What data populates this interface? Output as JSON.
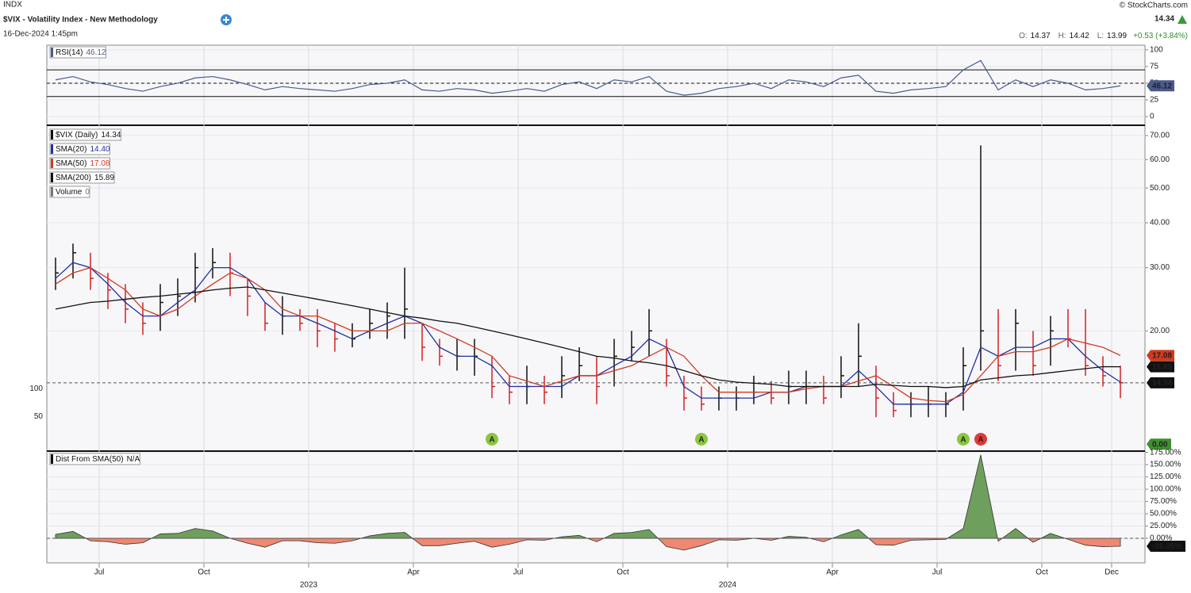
{
  "header": {
    "exchange": "INDX",
    "title": "$VIX - Volatility Index - New Methodology",
    "timestamp": "16-Dec-2024 1:45pm",
    "credit": "© StockCharts.com",
    "last": 14.34,
    "ohlc": [
      {
        "label": "O:",
        "value": 14.37
      },
      {
        "label": "H:",
        "value": 14.42
      },
      {
        "label": "L:",
        "value": 13.99
      }
    ],
    "change": "+0.53 (+3.84%)"
  },
  "chart_data": [
    {
      "type": "line",
      "name": "RSI(14)",
      "last": 46.12,
      "color": "#4a5a8c",
      "ylim": [
        -13,
        107
      ],
      "yticks": [
        0,
        25,
        50,
        75,
        100
      ],
      "bands": [
        30,
        70
      ],
      "midline": 50,
      "values": [
        55,
        60,
        52,
        48,
        42,
        38,
        45,
        50,
        58,
        60,
        55,
        48,
        40,
        45,
        42,
        40,
        38,
        42,
        48,
        50,
        55,
        40,
        38,
        42,
        40,
        35,
        38,
        42,
        38,
        48,
        52,
        42,
        55,
        52,
        60,
        38,
        32,
        35,
        42,
        45,
        50,
        42,
        55,
        52,
        45,
        58,
        62,
        38,
        35,
        40,
        42,
        45,
        70,
        84,
        40,
        55,
        45,
        55,
        50,
        40,
        42,
        46.12
      ]
    },
    {
      "type": "ohlc",
      "name": "$VIX (Daily)",
      "last": 14.34,
      "up_color": "#111111",
      "down_color": "#d42020",
      "log_scale": true,
      "grid": true,
      "categories": [
        null,
        null,
        null,
        "Jul",
        null,
        null,
        null,
        null,
        null,
        "Oct",
        null,
        null,
        null,
        null,
        null,
        "2023",
        null,
        null,
        null,
        null,
        null,
        "Apr",
        null,
        null,
        null,
        null,
        null,
        "Jul",
        null,
        null,
        null,
        null,
        null,
        "Oct",
        null,
        null,
        null,
        null,
        null,
        "2024",
        null,
        null,
        null,
        null,
        null,
        "Apr",
        null,
        null,
        null,
        null,
        null,
        "Jul",
        null,
        null,
        null,
        null,
        null,
        "Oct",
        null,
        null,
        null,
        "Dec"
      ],
      "high": [
        32,
        35,
        33,
        29,
        27,
        24,
        27,
        28,
        33,
        34,
        33,
        28,
        24,
        25,
        23,
        23,
        21,
        21,
        23,
        24,
        30,
        21,
        19,
        19,
        19,
        17,
        15,
        16,
        15,
        17,
        18,
        17,
        19,
        20,
        23,
        19,
        15,
        14,
        14,
        14,
        15,
        14.5,
        15.5,
        15.5,
        15,
        17,
        21,
        16,
        13.5,
        13.5,
        14,
        13.5,
        18,
        65.7,
        23,
        23,
        20,
        22,
        23,
        23,
        17,
        16
      ],
      "low": [
        26,
        28,
        26,
        23,
        21,
        19.5,
        20,
        22,
        24,
        28,
        25,
        22,
        20,
        19.5,
        20,
        18,
        17.5,
        18,
        19,
        19,
        19,
        16.5,
        16,
        15.5,
        15,
        13,
        12.5,
        12.5,
        12.5,
        13,
        14.5,
        12.5,
        14,
        16.5,
        17,
        14,
        12,
        12,
        12,
        12,
        12.5,
        12.5,
        12.5,
        12.5,
        12.5,
        13,
        14,
        11.5,
        11.5,
        11.5,
        11.5,
        11.5,
        12,
        15.5,
        14.5,
        15.5,
        15,
        16,
        18,
        15,
        14,
        13
      ],
      "close": [
        29,
        33,
        28,
        26,
        23,
        21,
        24,
        25,
        30,
        31,
        29,
        25,
        21,
        22,
        21,
        20,
        19,
        19,
        21,
        22,
        23,
        18,
        17,
        17,
        17,
        14,
        13.5,
        14,
        13.5,
        15,
        16,
        14,
        17,
        18,
        20,
        15,
        13,
        12.5,
        13,
        13,
        13.5,
        13,
        14,
        14,
        13,
        15,
        17,
        13,
        12,
        12.5,
        12.5,
        12.5,
        16,
        20,
        16,
        21,
        16,
        20,
        19,
        16,
        15,
        14.34
      ],
      "ylim": [
        9.3,
        74
      ],
      "yticks": [
        {
          "value": 20,
          "label": "20.00"
        },
        {
          "value": 30,
          "label": "30.00"
        },
        {
          "value": 40,
          "label": "40.00"
        },
        {
          "value": 50,
          "label": "50.00"
        },
        {
          "value": 60,
          "label": "60.00"
        },
        {
          "value": 70,
          "label": "70.00"
        }
      ],
      "overlays": [
        {
          "name": "SMA(20)",
          "color": "#1f2fa0",
          "last": {
            "value": 14.4,
            "label": "14.40"
          },
          "values": [
            28,
            31,
            30,
            27,
            24,
            22,
            22,
            24,
            26,
            30,
            30,
            28,
            24,
            22,
            22,
            21,
            20,
            19,
            20,
            21,
            22,
            21,
            18,
            17,
            17,
            16,
            14,
            14,
            14,
            14,
            15,
            15,
            16,
            17,
            19,
            18,
            14,
            13,
            13,
            13,
            13,
            13.5,
            13.5,
            14,
            14,
            14,
            15.5,
            14,
            12.5,
            12.5,
            12.5,
            12.5,
            13.5,
            18,
            17,
            18,
            18,
            19,
            19,
            17,
            15.5,
            14.4
          ]
        },
        {
          "name": "SMA(50)",
          "color": "#d23a1e",
          "last": 17.08,
          "tag": true,
          "values": [
            27,
            29,
            30,
            28,
            26,
            23,
            22,
            23,
            25,
            27,
            29,
            28,
            26,
            23,
            22,
            22,
            21,
            20,
            20,
            20,
            21,
            21,
            20,
            19,
            18,
            17,
            15,
            14.5,
            14,
            14.5,
            15,
            15,
            15.5,
            16,
            17,
            18,
            17,
            15,
            13.5,
            13.5,
            13.5,
            13.5,
            13.5,
            13.8,
            14,
            14,
            14.5,
            15,
            14,
            13,
            12.8,
            12.7,
            13.3,
            15,
            17,
            17.5,
            17.5,
            18,
            19,
            18.5,
            18,
            17.08
          ]
        },
        {
          "name": "SMA(200)",
          "color": "#111111",
          "last": 15.89,
          "tag": true,
          "values": [
            23,
            23.5,
            24,
            24.2,
            24.5,
            24.8,
            25,
            25.3,
            25.6,
            26,
            26.3,
            26.5,
            26,
            25.5,
            25,
            24.5,
            24,
            23.5,
            23,
            22.5,
            22,
            21.7,
            21.3,
            21,
            20.5,
            20,
            19.5,
            19,
            18.5,
            18,
            17.5,
            17,
            16.8,
            16.5,
            16.3,
            16,
            15.5,
            15,
            14.6,
            14.4,
            14.3,
            14.2,
            14,
            14,
            14,
            14,
            14,
            14.2,
            14.1,
            14,
            14,
            13.9,
            14,
            14.6,
            14.8,
            15,
            15.1,
            15.3,
            15.5,
            15.7,
            15.9,
            15.89
          ]
        }
      ],
      "volume": {
        "name": "Volume",
        "last": 0,
        "color": "#3f8f2f",
        "tag": {
          "value": 0,
          "label": "0.00"
        },
        "ylim": [
          -11,
          571
        ],
        "yticks": [
          50,
          100
        ]
      },
      "annotations": [
        {
          "text": "A",
          "color": "#8cc63f",
          "at": 25
        },
        {
          "text": "A",
          "color": "#8cc63f",
          "at": 37
        },
        {
          "text": "A",
          "color": "#8cc63f",
          "at": 52
        },
        {
          "text": "A",
          "color": "#e03a3a",
          "at": 53
        }
      ]
    },
    {
      "type": "area",
      "name": "Dist From SMA(50)",
      "status": "N/A",
      "last": {
        "value": -16.05,
        "label": "-16.05%"
      },
      "pos_color": "#6f9f5c",
      "neg_color": "#ee8870",
      "ylim": [
        -50,
        176
      ],
      "yticks": [
        {
          "value": 0,
          "label": "0.00%"
        },
        {
          "value": 25,
          "label": "25.00%"
        },
        {
          "value": 50,
          "label": "50.00%"
        },
        {
          "value": 75,
          "label": "75.00%"
        },
        {
          "value": 100,
          "label": "100.00%"
        },
        {
          "value": 125,
          "label": "125.00%"
        },
        {
          "value": 150,
          "label": "150.00%"
        },
        {
          "value": 175,
          "label": "175.00%"
        }
      ],
      "values": [
        8,
        14,
        -5,
        -7,
        -12,
        -9,
        9,
        10,
        20,
        15,
        0,
        -10,
        -18,
        -5,
        -5,
        -9,
        -10,
        -5,
        5,
        10,
        12,
        -15,
        -15,
        -10,
        -6,
        -18,
        -12,
        -3,
        -4,
        3,
        6,
        -7,
        10,
        12,
        18,
        -17,
        -24,
        -15,
        -3,
        -4,
        0,
        -4,
        4,
        2,
        -7,
        7,
        18,
        -13,
        -14,
        -4,
        -3,
        -2,
        20,
        170,
        -6,
        20,
        -8,
        10,
        -2,
        -14,
        -17,
        -16.05
      ]
    }
  ]
}
